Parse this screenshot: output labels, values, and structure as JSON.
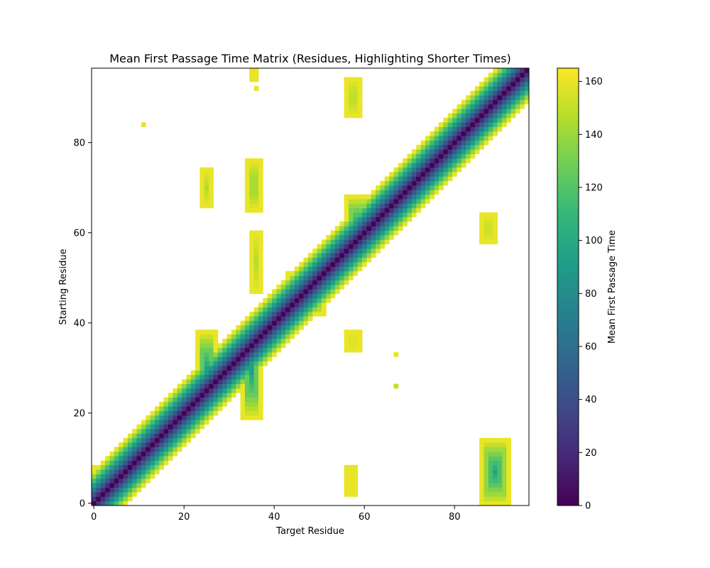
{
  "chart_data": {
    "type": "heatmap",
    "title": "Mean First Passage Time Matrix (Residues, Highlighting Shorter Times)",
    "xlabel": "Target Residue",
    "ylabel": "Starting Residue",
    "n_residues": 97,
    "x_ticks": [
      0,
      20,
      40,
      60,
      80
    ],
    "y_ticks": [
      0,
      20,
      40,
      60,
      80
    ],
    "colorbar": {
      "label": "Mean First Passage Time",
      "range": [
        0,
        165
      ],
      "ticks": [
        0,
        20,
        40,
        60,
        80,
        100,
        120,
        140,
        160
      ],
      "colormap": "viridis",
      "colors": [
        "#440154",
        "#482878",
        "#3e4989",
        "#31688e",
        "#26828e",
        "#1f9e89",
        "#35b779",
        "#6ece58",
        "#b5de2b",
        "#fde725"
      ]
    },
    "blank_above_value": 165,
    "diagonal": {
      "value": 0,
      "half_width_residues": 7,
      "max_value": 160
    },
    "blocks": [
      {
        "x": [
          23,
          27
        ],
        "y": [
          21,
          38
        ],
        "peak": 90
      },
      {
        "x": [
          33,
          37
        ],
        "y": [
          19,
          40
        ],
        "peak": 90
      },
      {
        "x": [
          56,
          61
        ],
        "y": [
          55,
          68
        ],
        "peak": 90
      },
      {
        "x": [
          43,
          51
        ],
        "y": [
          42,
          51
        ],
        "peak": 100
      },
      {
        "x": [
          0,
          7
        ],
        "y": [
          0,
          8
        ],
        "peak": 70
      },
      {
        "x": [
          24,
          26
        ],
        "y": [
          66,
          74
        ],
        "peak": 145
      },
      {
        "x": [
          34,
          37
        ],
        "y": [
          65,
          76
        ],
        "peak": 135
      },
      {
        "x": [
          35,
          37
        ],
        "y": [
          47,
          60
        ],
        "peak": 145
      },
      {
        "x": [
          56,
          59
        ],
        "y": [
          86,
          94
        ],
        "peak": 145
      },
      {
        "x": [
          56,
          59
        ],
        "y": [
          34,
          38
        ],
        "peak": 155
      },
      {
        "x": [
          56,
          58
        ],
        "y": [
          2,
          8
        ],
        "peak": 160
      },
      {
        "x": [
          86,
          92
        ],
        "y": [
          0,
          14
        ],
        "peak": 95
      },
      {
        "x": [
          86,
          89
        ],
        "y": [
          58,
          64
        ],
        "peak": 150
      },
      {
        "x": [
          35,
          36
        ],
        "y": [
          94,
          96
        ],
        "peak": 160
      }
    ],
    "specks": [
      {
        "x": 11,
        "y": 84,
        "value": 160
      },
      {
        "x": 67,
        "y": 33,
        "value": 160
      },
      {
        "x": 67,
        "y": 26,
        "value": 150
      },
      {
        "x": 36,
        "y": 92,
        "value": 160
      },
      {
        "x": 37,
        "y": 21,
        "value": 160
      }
    ]
  }
}
